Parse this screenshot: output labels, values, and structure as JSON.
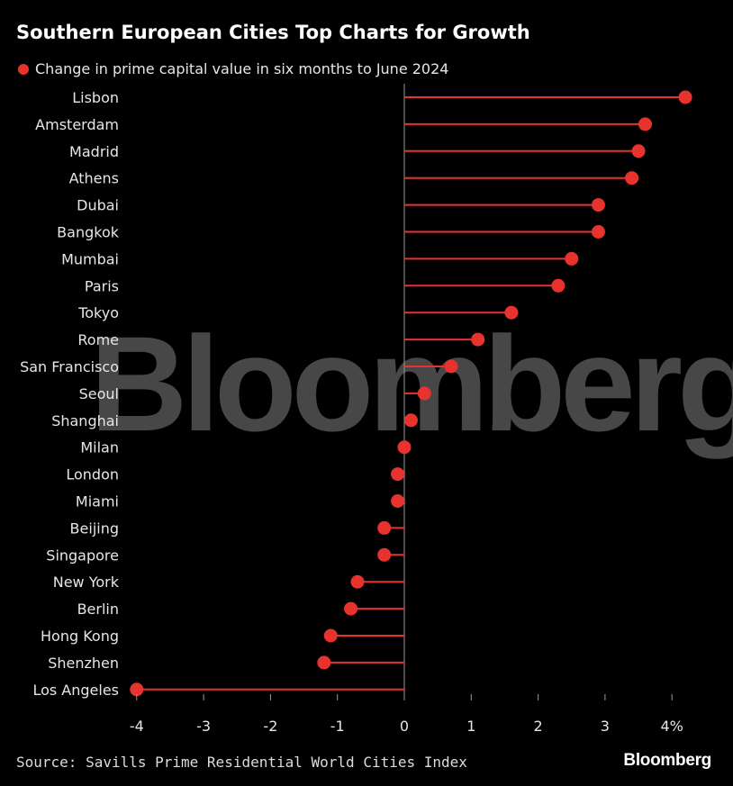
{
  "title": "Southern European Cities Top Charts for Growth",
  "legend_label": "Change in prime capital value in six months to June 2024",
  "source": "Source: Savills Prime Residential World Cities Index",
  "brand": "Bloomberg",
  "watermark": "Bloomberg",
  "colors": {
    "series": "#e8322e",
    "background": "#000000",
    "axis": "#9a9a9a",
    "text": "#e6e6e6"
  },
  "chart_data": {
    "type": "lollipop",
    "title": "Southern European Cities Top Charts for Growth",
    "series": [
      {
        "name": "Change in prime capital value in six months to June 2024",
        "color": "#e8322e"
      }
    ],
    "categories": [
      "Lisbon",
      "Amsterdam",
      "Madrid",
      "Athens",
      "Dubai",
      "Bangkok",
      "Mumbai",
      "Paris",
      "Tokyo",
      "Rome",
      "San Francisco",
      "Seoul",
      "Shanghai",
      "Milan",
      "London",
      "Miami",
      "Beijing",
      "Singapore",
      "New York",
      "Berlin",
      "Hong Kong",
      "Shenzhen",
      "Los Angeles"
    ],
    "values": [
      4.2,
      3.6,
      3.5,
      3.4,
      2.9,
      2.9,
      2.5,
      2.3,
      1.6,
      1.1,
      0.7,
      0.3,
      0.1,
      0.0,
      -0.1,
      -0.1,
      -0.3,
      -0.3,
      -0.7,
      -0.8,
      -1.1,
      -1.2,
      -4.0
    ],
    "x_ticks": [
      "-4",
      "-3",
      "-2",
      "-1",
      "0",
      "1",
      "2",
      "3",
      "4%"
    ],
    "x_tick_values": [
      -4,
      -3,
      -2,
      -1,
      0,
      1,
      2,
      3,
      4
    ],
    "xlim": [
      -4,
      4.2
    ],
    "xlabel": "",
    "ylabel": ""
  }
}
